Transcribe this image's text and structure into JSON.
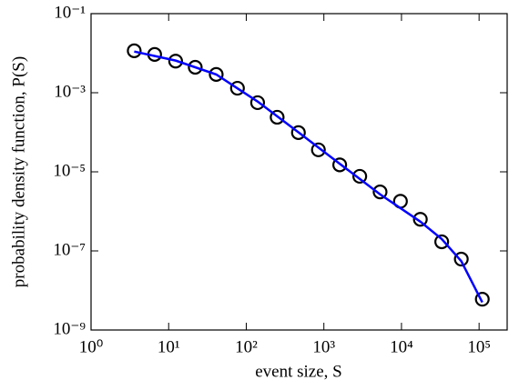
{
  "chart_data": {
    "type": "scatter",
    "xlabel": "event size, S",
    "ylabel": "probability density function, P(S)",
    "xscale": "log",
    "yscale": "log",
    "xlim": [
      1,
      230000
    ],
    "ylim": [
      1e-09,
      0.1
    ],
    "xticks": [
      {
        "value": 1,
        "label": "10⁰"
      },
      {
        "value": 10,
        "label": "10¹"
      },
      {
        "value": 100,
        "label": "10²"
      },
      {
        "value": 1000,
        "label": "10³"
      },
      {
        "value": 10000,
        "label": "10⁴"
      },
      {
        "value": 100000,
        "label": "10⁵"
      }
    ],
    "yticks": [
      {
        "value": 1e-09,
        "label": "10⁻⁹"
      },
      {
        "value": 1e-07,
        "label": "10⁻⁷"
      },
      {
        "value": 1e-05,
        "label": "10⁻⁵"
      },
      {
        "value": 0.001,
        "label": "10⁻³"
      },
      {
        "value": 0.1,
        "label": "10⁻¹"
      }
    ],
    "series": [
      {
        "marker": "circle",
        "color": "#000000",
        "x": [
          3.6,
          6.6,
          12.3,
          22,
          41,
          77,
          140,
          250,
          470,
          850,
          1600,
          2900,
          5300,
          9700,
          17500,
          33000,
          59000,
          110000
        ],
        "values": [
          0.0115,
          0.0093,
          0.0063,
          0.0044,
          0.0029,
          0.0013,
          0.00056,
          0.00024,
          9.8e-05,
          3.6e-05,
          1.5e-05,
          7.7e-06,
          3.1e-06,
          1.8e-06,
          6.3e-07,
          1.7e-07,
          6.2e-08,
          6e-09
        ]
      },
      {
        "marker": "line",
        "color": "#0000ff",
        "x": [
          3.6,
          12.3,
          41,
          140,
          470,
          1600,
          5300,
          17500,
          33000,
          59000,
          110000
        ],
        "values": [
          0.011,
          0.0065,
          0.0029,
          0.0006,
          0.0001,
          1.6e-05,
          2.7e-06,
          5.5e-07,
          2e-07,
          5.5e-08,
          5e-09
        ]
      }
    ]
  }
}
